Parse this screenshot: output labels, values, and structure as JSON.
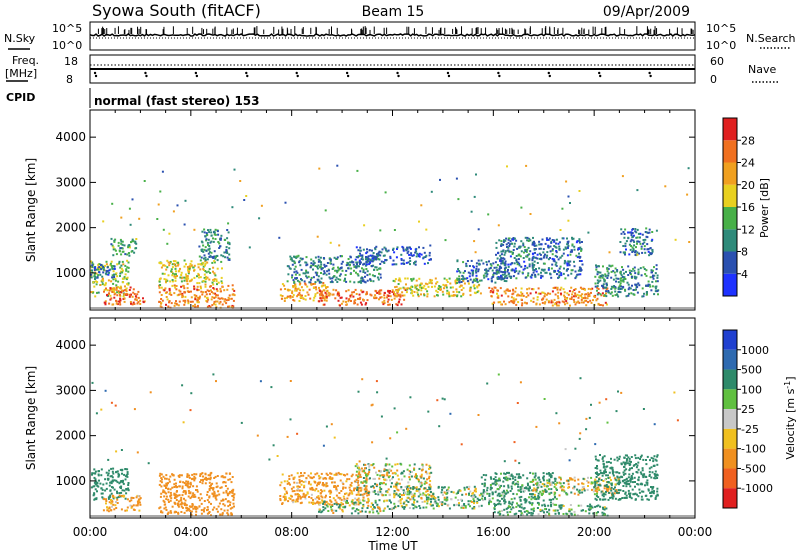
{
  "header": {
    "station": "Syowa South (fitACF)",
    "beam": "Beam 15",
    "date": "09/Apr/2009"
  },
  "status_panel": {
    "nsky_label": "N.Sky",
    "nsearch_label": "N.Search",
    "freq_label_1": "Freq.",
    "freq_label_2": "[MHz]",
    "nave_label": "Nave",
    "cpid_label": "CPID",
    "cpid_text": "normal (fast stereo) 153",
    "noise_ticks": [
      "10^5",
      "10^0"
    ],
    "freq_ticks": [
      "18",
      "8"
    ],
    "nave_ticks": [
      "60",
      "0"
    ]
  },
  "time_axis": {
    "label": "Time UT",
    "ticks": [
      "00:00",
      "04:00",
      "08:00",
      "12:00",
      "16:00",
      "20:00",
      "00:00"
    ]
  },
  "range_axis": {
    "label": "Slant Range [km]",
    "ticks": [
      "1000",
      "2000",
      "3000",
      "4000"
    ]
  },
  "colorbars": {
    "power": {
      "label": "Power [dB]",
      "ticks": [
        "4",
        "8",
        "12",
        "16",
        "20",
        "24",
        "28"
      ],
      "colors": [
        "#1e32ff",
        "#2a50b0",
        "#2e8a7a",
        "#48b048",
        "#e8d020",
        "#f0a020",
        "#f07020",
        "#e02020"
      ]
    },
    "velocity": {
      "label": "Velocity [m s",
      "label_sup": "-1",
      "label_end": "]",
      "ticks": [
        "1000",
        "500",
        "100",
        "25",
        "-25",
        "-100",
        "-500",
        "-1000"
      ],
      "colors": [
        "#2040d0",
        "#2e6ab0",
        "#2e8a6a",
        "#60c040",
        "#c8c8c8",
        "#f0c020",
        "#f09020",
        "#f06020",
        "#e02020"
      ]
    }
  },
  "chart_data": [
    {
      "type": "heatmap",
      "title": "",
      "xlabel": "Time UT",
      "ylabel": "Slant Range [km]",
      "x_range_hours": [
        0,
        24
      ],
      "ylim": [
        180,
        4600
      ],
      "colorbar_label": "Power [dB]",
      "colorbar_range": [
        0,
        30
      ],
      "regions": [
        {
          "t": [
            0.0,
            1.5
          ],
          "r": [
            500,
            1300
          ],
          "value": 16
        },
        {
          "t": [
            0.0,
            1.0
          ],
          "r": [
            900,
            1200
          ],
          "value": 8
        },
        {
          "t": [
            0.5,
            2.2
          ],
          "r": [
            300,
            700
          ],
          "value": 26
        },
        {
          "t": [
            0.8,
            1.8
          ],
          "r": [
            1400,
            1800
          ],
          "value": 12
        },
        {
          "t": [
            2.7,
            5.7
          ],
          "r": [
            250,
            750
          ],
          "value": 24
        },
        {
          "t": [
            2.7,
            5.2
          ],
          "r": [
            750,
            1300
          ],
          "value": 18
        },
        {
          "t": [
            4.3,
            5.5
          ],
          "r": [
            1300,
            2000
          ],
          "value": 10
        },
        {
          "t": [
            7.5,
            9.5
          ],
          "r": [
            400,
            800
          ],
          "value": 22
        },
        {
          "t": [
            7.8,
            11.5
          ],
          "r": [
            800,
            1400
          ],
          "value": 10
        },
        {
          "t": [
            9.0,
            12.5
          ],
          "r": [
            300,
            650
          ],
          "value": 26
        },
        {
          "t": [
            10.5,
            13.5
          ],
          "r": [
            1200,
            1600
          ],
          "value": 6
        },
        {
          "t": [
            12.0,
            15.5
          ],
          "r": [
            500,
            900
          ],
          "value": 18
        },
        {
          "t": [
            14.5,
            16.5
          ],
          "r": [
            800,
            1300
          ],
          "value": 8
        },
        {
          "t": [
            15.8,
            20.5
          ],
          "r": [
            300,
            700
          ],
          "value": 24
        },
        {
          "t": [
            16.0,
            19.5
          ],
          "r": [
            900,
            1800
          ],
          "value": 8
        },
        {
          "t": [
            20.0,
            22.5
          ],
          "r": [
            500,
            1200
          ],
          "value": 10
        },
        {
          "t": [
            21.0,
            22.3
          ],
          "r": [
            1400,
            2000
          ],
          "value": 8
        }
      ]
    },
    {
      "type": "heatmap",
      "title": "",
      "xlabel": "Time UT",
      "ylabel": "Slant Range [km]",
      "x_range_hours": [
        0,
        24
      ],
      "ylim": [
        180,
        4600
      ],
      "colorbar_label": "Velocity [m s^-1]",
      "colorbar_range": [
        -1000,
        1000
      ],
      "regions": [
        {
          "t": [
            0.0,
            1.5
          ],
          "r": [
            600,
            1300
          ],
          "value": 300
        },
        {
          "t": [
            0.5,
            2.0
          ],
          "r": [
            350,
            700
          ],
          "value": -200
        },
        {
          "t": [
            2.7,
            5.7
          ],
          "r": [
            250,
            1200
          ],
          "value": -300
        },
        {
          "t": [
            7.5,
            11.0
          ],
          "r": [
            500,
            1200
          ],
          "value": -200
        },
        {
          "t": [
            10.5,
            13.5
          ],
          "r": [
            700,
            1400
          ],
          "value": 0
        },
        {
          "t": [
            9.0,
            12.0
          ],
          "r": [
            300,
            600
          ],
          "value": 60
        },
        {
          "t": [
            12.0,
            15.5
          ],
          "r": [
            400,
            900
          ],
          "value": 60
        },
        {
          "t": [
            15.5,
            18.5
          ],
          "r": [
            500,
            1200
          ],
          "value": 200
        },
        {
          "t": [
            16.0,
            20.5
          ],
          "r": [
            250,
            500
          ],
          "value": 150
        },
        {
          "t": [
            17.5,
            21.0
          ],
          "r": [
            700,
            1100
          ],
          "value": 0
        },
        {
          "t": [
            20.0,
            22.5
          ],
          "r": [
            600,
            1600
          ],
          "value": 300
        }
      ]
    }
  ]
}
